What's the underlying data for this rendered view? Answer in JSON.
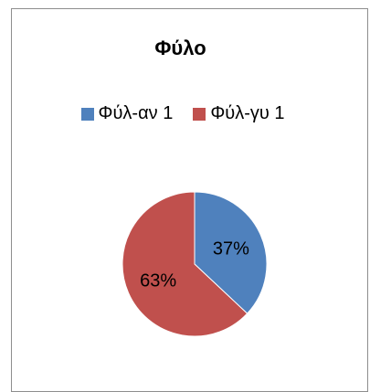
{
  "chart_data": {
    "type": "pie",
    "title": "Φύλο",
    "categories": [
      "Φύλ-αν 1",
      "Φύλ-γυ 1"
    ],
    "values": [
      37,
      63
    ],
    "data_labels": [
      "37%",
      "63%"
    ],
    "colors": [
      "#4f81bd",
      "#c0504d"
    ],
    "legend_position": "top"
  }
}
